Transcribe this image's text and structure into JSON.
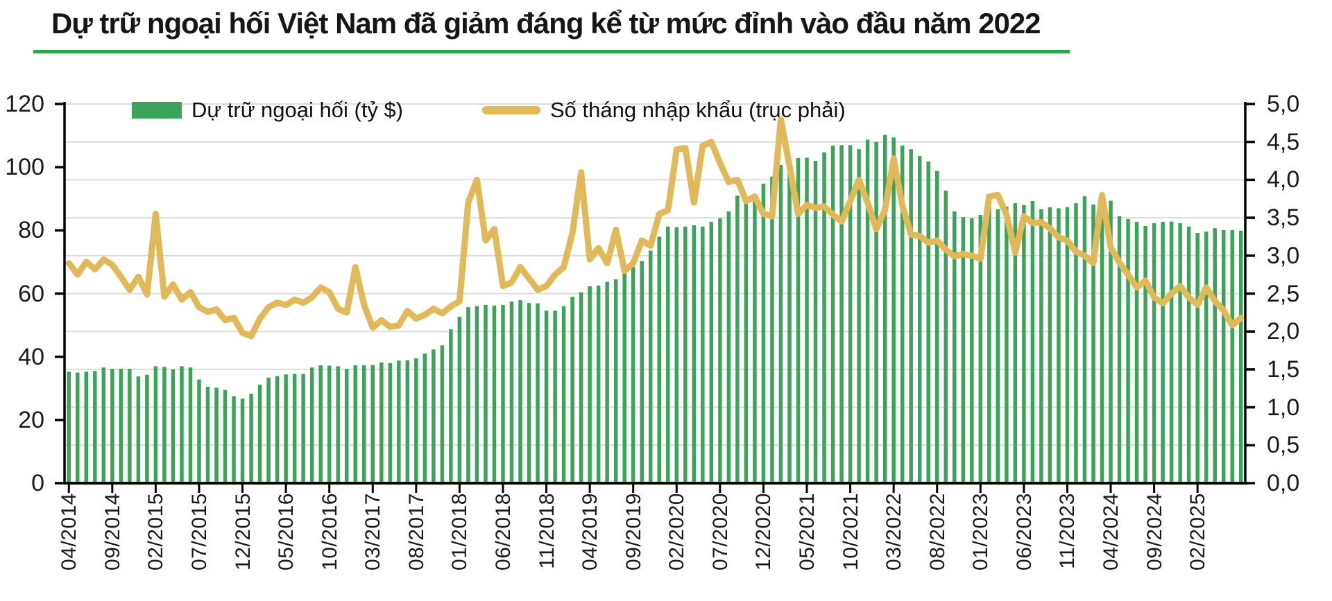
{
  "title": "Dự trữ ngoại hối Việt Nam đã giảm đáng kể từ mức đỉnh vào đầu năm 2022",
  "legend": {
    "bars_label": "Dự trữ ngoại hối (tỷ $)",
    "line_label": "Số tháng nhập khẩu (trục phải)"
  },
  "colors": {
    "bar": "#3CA45A",
    "line": "#E2B959",
    "title_rule": "#2FA24E",
    "grid": "#DBDBDB",
    "axis": "#000000",
    "text": "#1A1A1A"
  },
  "chart_data": {
    "type": "bar",
    "subtype": "combo bar + line, dual axis, monthly data 04/2014 - 07/2025",
    "grid": "horizontal gridlines every 0.5 of right axis",
    "legend_position": "top inside plot",
    "left_axis": {
      "min": 0,
      "max": 120,
      "tick_step": 20,
      "ticks": [
        "120",
        "100",
        "80",
        "60",
        "40",
        "20",
        "0"
      ]
    },
    "right_axis": {
      "min": 0.0,
      "max": 5.0,
      "tick_step": 0.5,
      "ticks": [
        "5,0",
        "4,5",
        "4,0",
        "3,5",
        "3,0",
        "2,5",
        "2,0",
        "1,5",
        "1,0",
        "0,5",
        "0,0"
      ]
    },
    "x_tick_every": 5,
    "x_tick_labels": [
      "04/2014",
      "09/2014",
      "02/2015",
      "07/2015",
      "12/2015",
      "05/2016",
      "10/2016",
      "03/2017",
      "08/2017",
      "01/2018",
      "06/2018",
      "11/2018",
      "04/2019",
      "09/2019",
      "02/2020",
      "07/2020",
      "12/2020",
      "05/2021",
      "10/2021",
      "03/2022",
      "08/2022",
      "01/2023",
      "06/2023",
      "11/2023",
      "04/2024",
      "09/2024",
      "02/2025"
    ],
    "x": [
      "04/2014",
      "05/2014",
      "06/2014",
      "07/2014",
      "08/2014",
      "09/2014",
      "10/2014",
      "11/2014",
      "12/2014",
      "01/2015",
      "02/2015",
      "03/2015",
      "04/2015",
      "05/2015",
      "06/2015",
      "07/2015",
      "08/2015",
      "09/2015",
      "10/2015",
      "11/2015",
      "12/2015",
      "01/2016",
      "02/2016",
      "03/2016",
      "04/2016",
      "05/2016",
      "06/2016",
      "07/2016",
      "08/2016",
      "09/2016",
      "10/2016",
      "11/2016",
      "12/2016",
      "01/2017",
      "02/2017",
      "03/2017",
      "04/2017",
      "05/2017",
      "06/2017",
      "07/2017",
      "08/2017",
      "09/2017",
      "10/2017",
      "11/2017",
      "12/2017",
      "01/2018",
      "02/2018",
      "03/2018",
      "04/2018",
      "05/2018",
      "06/2018",
      "07/2018",
      "08/2018",
      "09/2018",
      "10/2018",
      "11/2018",
      "12/2018",
      "01/2019",
      "02/2019",
      "03/2019",
      "04/2019",
      "05/2019",
      "06/2019",
      "07/2019",
      "08/2019",
      "09/2019",
      "10/2019",
      "11/2019",
      "12/2019",
      "01/2020",
      "02/2020",
      "03/2020",
      "04/2020",
      "05/2020",
      "06/2020",
      "07/2020",
      "08/2020",
      "09/2020",
      "10/2020",
      "11/2020",
      "12/2020",
      "01/2021",
      "02/2021",
      "03/2021",
      "04/2021",
      "05/2021",
      "06/2021",
      "07/2021",
      "08/2021",
      "09/2021",
      "10/2021",
      "11/2021",
      "12/2021",
      "01/2022",
      "02/2022",
      "03/2022",
      "04/2022",
      "05/2022",
      "06/2022",
      "07/2022",
      "08/2022",
      "09/2022",
      "10/2022",
      "11/2022",
      "12/2022",
      "01/2023",
      "02/2023",
      "03/2023",
      "04/2023",
      "05/2023",
      "06/2023",
      "07/2023",
      "08/2023",
      "09/2023",
      "10/2023",
      "11/2023",
      "12/2023",
      "01/2024",
      "02/2024",
      "03/2024",
      "04/2024",
      "05/2024",
      "06/2024",
      "07/2024",
      "08/2024",
      "09/2024",
      "10/2024",
      "11/2024",
      "12/2024",
      "01/2025",
      "02/2025",
      "03/2025",
      "04/2025",
      "05/2025",
      "06/2025",
      "07/2025"
    ],
    "series": [
      {
        "name": "Dự trữ ngoại hối (tỷ $)",
        "type": "bar",
        "axis": "left",
        "values": [
          35.3,
          35.0,
          35.3,
          35.5,
          36.6,
          36.2,
          36.2,
          36.2,
          33.8,
          34.3,
          37.0,
          36.8,
          36.0,
          37.0,
          36.6,
          32.8,
          30.5,
          30.2,
          29.5,
          27.5,
          26.8,
          28.3,
          31.2,
          33.4,
          33.9,
          34.4,
          34.6,
          34.6,
          36.6,
          37.3,
          37.2,
          37.0,
          36.2,
          37.3,
          37.3,
          37.4,
          38.2,
          38.0,
          38.8,
          38.9,
          39.5,
          41.0,
          42.3,
          43.6,
          48.7,
          52.7,
          55.7,
          56.0,
          56.4,
          56.2,
          56.4,
          57.5,
          57.9,
          57.0,
          56.9,
          54.6,
          54.6,
          56.0,
          59.0,
          60.4,
          62.3,
          62.5,
          63.7,
          64.5,
          66.7,
          68.5,
          70.3,
          73.6,
          78.0,
          81.2,
          81.0,
          81.2,
          81.6,
          81.2,
          82.7,
          83.8,
          86.0,
          91.0,
          90.4,
          90.6,
          94.8,
          97.0,
          100.7,
          100.3,
          102.9,
          103.0,
          102.0,
          104.7,
          106.8,
          107.0,
          107.0,
          105.7,
          108.7,
          108.0,
          110.2,
          109.4,
          106.8,
          105.7,
          103.5,
          101.8,
          98.8,
          92.6,
          86.0,
          84.2,
          83.8,
          84.9,
          88.6,
          86.7,
          87.5,
          88.6,
          88.0,
          89.3,
          86.7,
          87.3,
          87.0,
          87.3,
          88.6,
          90.8,
          88.2,
          89.5,
          89.4,
          84.5,
          83.6,
          82.7,
          81.4,
          82.3,
          82.7,
          82.8,
          82.3,
          81.2,
          79.2,
          79.6,
          80.7,
          80.1,
          80.1,
          79.9
        ]
      },
      {
        "name": "Số tháng nhập khẩu (trục phải)",
        "type": "line",
        "axis": "right",
        "values": [
          2.9,
          2.75,
          2.92,
          2.82,
          2.95,
          2.88,
          2.72,
          2.55,
          2.72,
          2.49,
          3.55,
          2.46,
          2.62,
          2.42,
          2.52,
          2.32,
          2.26,
          2.29,
          2.15,
          2.18,
          1.98,
          1.94,
          2.17,
          2.32,
          2.38,
          2.35,
          2.42,
          2.38,
          2.45,
          2.58,
          2.52,
          2.3,
          2.25,
          2.85,
          2.35,
          2.05,
          2.15,
          2.06,
          2.08,
          2.27,
          2.17,
          2.22,
          2.3,
          2.24,
          2.33,
          2.4,
          3.7,
          4.0,
          3.2,
          3.35,
          2.6,
          2.65,
          2.85,
          2.7,
          2.55,
          2.6,
          2.75,
          2.85,
          3.3,
          4.1,
          2.95,
          3.1,
          2.9,
          3.34,
          2.8,
          2.9,
          3.2,
          3.13,
          3.55,
          3.6,
          4.4,
          4.42,
          3.7,
          4.45,
          4.5,
          4.22,
          3.97,
          4.0,
          3.72,
          3.78,
          3.55,
          3.52,
          4.8,
          4.18,
          3.55,
          3.67,
          3.63,
          3.65,
          3.54,
          3.45,
          3.72,
          4.0,
          3.7,
          3.35,
          3.6,
          4.28,
          3.66,
          3.28,
          3.26,
          3.17,
          3.2,
          3.08,
          2.99,
          3.02,
          3.0,
          2.96,
          3.78,
          3.8,
          3.54,
          3.04,
          3.52,
          3.43,
          3.44,
          3.36,
          3.24,
          3.2,
          3.05,
          3.0,
          2.9,
          3.8,
          3.11,
          2.91,
          2.75,
          2.58,
          2.67,
          2.45,
          2.37,
          2.5,
          2.6,
          2.45,
          2.35,
          2.58,
          2.4,
          2.28,
          2.08,
          2.18
        ]
      }
    ]
  }
}
